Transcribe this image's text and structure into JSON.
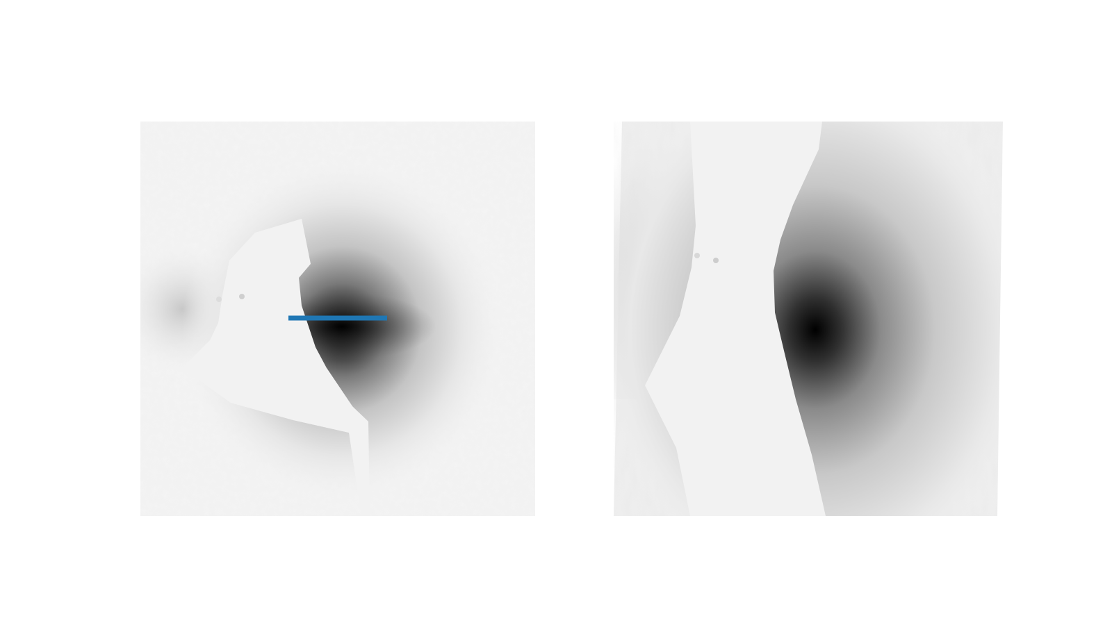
{
  "figure": {
    "panels": [
      {
        "id": "left",
        "kind": "grayscale-image",
        "has_marker_line": true
      },
      {
        "id": "right",
        "kind": "grayscale-image",
        "has_marker_line": false
      }
    ],
    "colors": {
      "background": "#ffffff",
      "image_base": "#f2f2f2",
      "blob_core": "#000000",
      "marker_line": "#1f77b4"
    }
  }
}
